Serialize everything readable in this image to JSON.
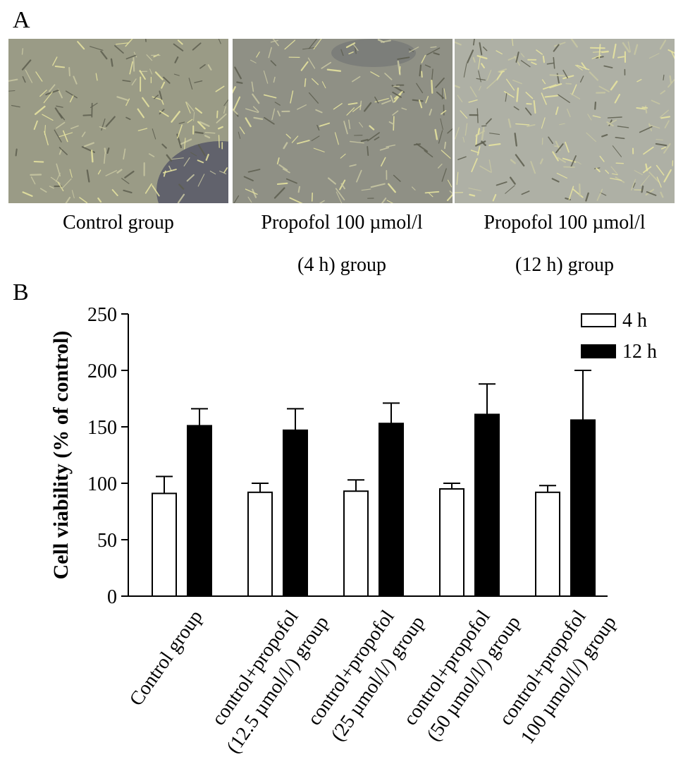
{
  "figure": {
    "panel_a_label": "A",
    "panel_b_label": "B"
  },
  "micrographs": [
    {
      "caption_lines": [
        "Control group"
      ],
      "tint": "#9a9b86"
    },
    {
      "caption_lines": [
        "Propofol 100 µmol/l",
        "(4 h) group"
      ],
      "tint": "#8f9085"
    },
    {
      "caption_lines": [
        "Propofol 100 µmol/l",
        "(12 h) group"
      ],
      "tint": "#aeb0a5"
    }
  ],
  "chart_data": {
    "type": "bar",
    "ylabel": "Cell viability (% of control)",
    "xlabel": "",
    "ylim": [
      0,
      250
    ],
    "yticks": [
      0,
      50,
      100,
      150,
      200,
      250
    ],
    "categories": [
      [
        "Control group"
      ],
      [
        "control+propofol",
        "(12.5 µmol/l/) group"
      ],
      [
        "control+propofol",
        "(25 µmol/l/) group"
      ],
      [
        "control+propofol",
        "(50 µmol/l/) group"
      ],
      [
        "control+propofol",
        "100 µmol/l/) group"
      ]
    ],
    "series": [
      {
        "name": "4 h",
        "fill": "#ffffff",
        "values": [
          91,
          92,
          93,
          95,
          92
        ],
        "errors": [
          15,
          8,
          10,
          5,
          6
        ]
      },
      {
        "name": "12 h",
        "fill": "#000000",
        "values": [
          151,
          147,
          153,
          161,
          156
        ],
        "errors": [
          15,
          19,
          18,
          27,
          44
        ]
      }
    ],
    "legend_position": "top-right",
    "grid": false
  }
}
